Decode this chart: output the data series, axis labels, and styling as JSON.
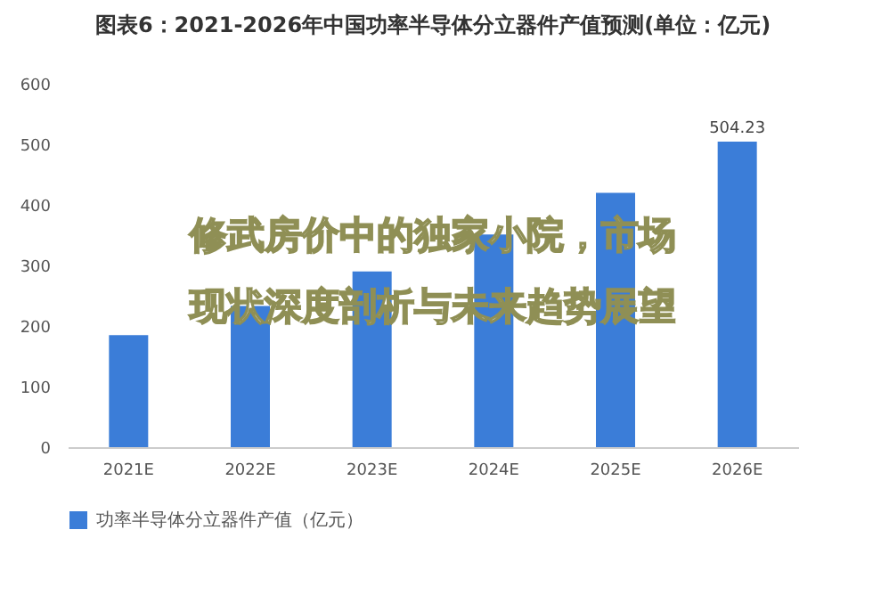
{
  "chart_data": {
    "type": "bar",
    "title": "图表6：2021-2026年中国功率半导体分立器件产值预测(单位：亿元)",
    "categories": [
      "2021E",
      "2022E",
      "2023E",
      "2024E",
      "2025E",
      "2026E"
    ],
    "series": [
      {
        "name": "功率半导体分立器件产值（亿元）",
        "color": "#3b7dd8",
        "values": [
          185,
          233,
          290,
          351,
          420,
          504.23
        ],
        "value_labels": [
          null,
          null,
          null,
          null,
          null,
          "504.23"
        ]
      }
    ],
    "ylim": [
      0,
      600
    ],
    "yticks": [
      0,
      100,
      200,
      300,
      400,
      500,
      600
    ],
    "grid": false,
    "legend": "bottom",
    "annotations": [
      "修武房价中的独家小院，市场",
      "现状深度剖析与未来趋势展望"
    ]
  }
}
